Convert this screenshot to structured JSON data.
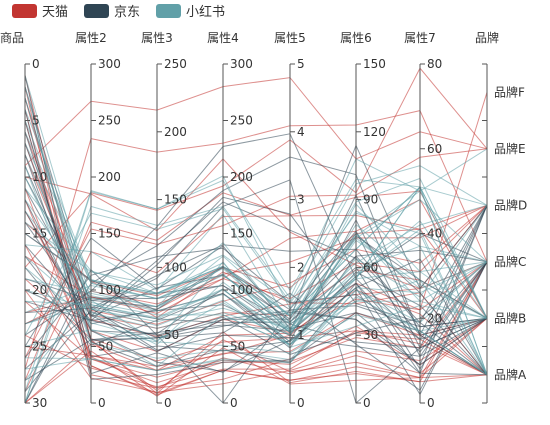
{
  "chart_data": {
    "type": "parallel",
    "legend": [
      {
        "name": "天猫",
        "color": "#c23531"
      },
      {
        "name": "京东",
        "color": "#2f4554"
      },
      {
        "name": "小红书",
        "color": "#61a0a8"
      }
    ],
    "axes": [
      {
        "name": "商品",
        "type": "value",
        "min": 0,
        "max": 30,
        "inverse": true,
        "ticks": [
          0,
          5,
          10,
          15,
          20,
          25,
          30
        ]
      },
      {
        "name": "属性2",
        "type": "value",
        "min": 0,
        "max": 300,
        "inverse": false,
        "ticks": [
          0,
          50,
          100,
          150,
          200,
          250,
          300
        ]
      },
      {
        "name": "属性3",
        "type": "value",
        "min": 0,
        "max": 250,
        "inverse": false,
        "ticks": [
          0,
          50,
          100,
          150,
          200,
          250
        ]
      },
      {
        "name": "属性4",
        "type": "value",
        "min": 0,
        "max": 300,
        "inverse": false,
        "ticks": [
          0,
          50,
          100,
          150,
          200,
          250,
          300
        ]
      },
      {
        "name": "属性5",
        "type": "value",
        "min": 0,
        "max": 5,
        "inverse": false,
        "ticks": [
          0,
          1,
          2,
          3,
          4,
          5
        ]
      },
      {
        "name": "属性6",
        "type": "value",
        "min": 0,
        "max": 150,
        "inverse": false,
        "ticks": [
          0,
          30,
          60,
          90,
          120,
          150
        ]
      },
      {
        "name": "属性7",
        "type": "value",
        "min": 0,
        "max": 80,
        "inverse": false,
        "ticks": [
          0,
          20,
          40,
          60,
          80
        ]
      },
      {
        "name": "品牌",
        "type": "category",
        "categories": [
          "品牌A",
          "品牌B",
          "品牌C",
          "品牌D",
          "品牌E",
          "品牌F"
        ]
      }
    ],
    "series": [
      {
        "name": "天猫",
        "color": "#c23531",
        "rows": [
          [
            1,
            55,
            9,
            56,
            0.46,
            18,
            6,
            "品牌A"
          ],
          [
            2,
            25,
            11,
            21,
            0.65,
            34,
            9,
            "品牌B"
          ],
          [
            3,
            56,
            7,
            63,
            0.3,
            14,
            5,
            "品牌A"
          ],
          [
            4,
            33,
            7,
            29,
            0.33,
            16,
            6,
            "品牌C"
          ],
          [
            5,
            42,
            24,
            44,
            0.76,
            40,
            16,
            "品牌B"
          ],
          [
            6,
            82,
            58,
            90,
            1.77,
            68,
            33,
            "品牌D"
          ],
          [
            7,
            74,
            49,
            77,
            1.46,
            48,
            27,
            "品牌C"
          ],
          [
            8,
            78,
            55,
            80,
            1.29,
            59,
            29,
            "品牌B"
          ],
          [
            9,
            267,
            216,
            280,
            4.8,
            108,
            64,
            "品牌E"
          ],
          [
            10,
            185,
            127,
            216,
            2.52,
            61,
            27,
            "品牌D"
          ],
          [
            11,
            39,
            19,
            38,
            0.57,
            31,
            15,
            "品牌A"
          ],
          [
            12,
            41,
            11,
            40,
            0.43,
            21,
            7,
            "品牌B"
          ],
          [
            13,
            64,
            38,
            74,
            1.04,
            46,
            22,
            "品牌C"
          ],
          [
            14,
            108,
            79,
            120,
            1.7,
            75,
            41,
            "品牌B"
          ],
          [
            15,
            108,
            63,
            116,
            1.48,
            44,
            26,
            "品牌A"
          ],
          [
            16,
            33,
            6,
            29,
            0.34,
            13,
            5,
            "品牌C"
          ],
          [
            17,
            94,
            66,
            110,
            1.54,
            62,
            31,
            "品牌D"
          ],
          [
            18,
            186,
            142,
            192,
            3.88,
            93,
            79,
            "品牌E"
          ],
          [
            19,
            57,
            31,
            54,
            0.96,
            32,
            14,
            "品牌A"
          ],
          [
            20,
            22,
            8,
            17,
            0.48,
            23,
            10,
            "品牌B"
          ],
          [
            21,
            39,
            15,
            36,
            0.61,
            29,
            13,
            "品牌C"
          ],
          [
            22,
            94,
            69,
            114,
            2.08,
            73,
            39,
            "品牌D"
          ],
          [
            23,
            99,
            73,
            110,
            2.43,
            76,
            48,
            "品牌B"
          ],
          [
            24,
            31,
            12,
            30,
            0.5,
            32,
            16,
            "品牌A"
          ],
          [
            25,
            42,
            27,
            43,
            1,
            53,
            22,
            "品牌F"
          ],
          [
            26,
            154,
            117,
            157,
            3.05,
            92,
            58,
            "品牌E"
          ],
          [
            27,
            234,
            185,
            230,
            4.09,
            123,
            69,
            "品牌C"
          ],
          [
            28,
            160,
            120,
            186,
            2.77,
            91,
            50,
            "品牌B"
          ],
          [
            29,
            134,
            96,
            165,
            2.76,
            83,
            41,
            "品牌D"
          ],
          [
            30,
            52,
            24,
            60,
            1.03,
            50,
            21,
            "品牌A"
          ],
          [
            31,
            46,
            5,
            49,
            0.28,
            10,
            6,
            "品牌B"
          ]
        ]
      },
      {
        "name": "京东",
        "color": "#2f4554",
        "rows": [
          [
            1,
            26,
            37,
            27,
            1.163,
            27,
            13,
            "品牌B"
          ],
          [
            2,
            85,
            62,
            71,
            1.195,
            60,
            8,
            "品牌C"
          ],
          [
            3,
            78,
            38,
            74,
            1.363,
            37,
            7,
            "品牌A"
          ],
          [
            4,
            21,
            21,
            36,
            0.634,
            40,
            9,
            "品牌B"
          ],
          [
            5,
            41,
            42,
            46,
            0.915,
            81,
            13,
            "品牌D"
          ],
          [
            6,
            56,
            52,
            69,
            1.067,
            92,
            16,
            "品牌B"
          ],
          [
            7,
            64,
            30,
            28,
            0.924,
            51,
            2,
            "品牌C"
          ],
          [
            8,
            55,
            48,
            74,
            1.236,
            75,
            26,
            "品牌A"
          ],
          [
            9,
            76,
            85,
            113,
            1.237,
            114,
            27,
            "品牌D"
          ],
          [
            10,
            91,
            81,
            104,
            1.041,
            56,
            40,
            "品牌C"
          ],
          [
            11,
            84,
            39,
            60,
            0.964,
            25,
            11,
            "品牌B"
          ],
          [
            12,
            64,
            51,
            101,
            0.862,
            58,
            23,
            "品牌A"
          ],
          [
            13,
            70,
            69,
            120,
            1.198,
            65,
            36,
            "品牌C"
          ],
          [
            14,
            77,
            105,
            178,
            2.549,
            64,
            16,
            "品牌D"
          ],
          [
            15,
            109,
            68,
            87,
            0.996,
            74,
            29,
            "品牌B"
          ],
          [
            16,
            73,
            68,
            97,
            0.905,
            51,
            34,
            "品牌A"
          ],
          [
            17,
            54,
            27,
            47,
            0.592,
            53,
            12,
            "品牌C"
          ],
          [
            18,
            51,
            61,
            97,
            0.811,
            65,
            19,
            "品牌D"
          ],
          [
            19,
            91,
            71,
            121,
            1.374,
            43,
            18,
            "品牌B"
          ],
          [
            20,
            73,
            102,
            182,
            2.787,
            44,
            19,
            "品牌A"
          ],
          [
            21,
            73,
            50,
            76,
            0.717,
            31,
            20,
            "品牌C"
          ],
          [
            22,
            84,
            94,
            140,
            2.238,
            68,
            18,
            "品牌B"
          ],
          [
            23,
            93,
            77,
            104,
            1.165,
            53,
            7,
            "品牌D"
          ],
          [
            24,
            99,
            130,
            227,
            3.97,
            55,
            15,
            "品牌C"
          ],
          [
            25,
            146,
            84,
            139,
            1.094,
            40,
            17,
            "品牌A"
          ],
          [
            26,
            113,
            108,
            137,
            1.481,
            48,
            15,
            "品牌B"
          ],
          [
            27,
            81,
            48,
            62,
            1.619,
            26,
            3,
            "品牌C"
          ],
          [
            28,
            56,
            48,
            68,
            1.336,
            37,
            9,
            "品牌D"
          ],
          [
            29,
            82,
            92,
            174,
            3.29,
            0,
            13,
            "品牌B"
          ],
          [
            30,
            106,
            116,
            188,
            3.628,
            101,
            16,
            "品牌A"
          ],
          [
            31,
            118,
            50,
            0,
            1.383,
            76,
            11,
            "品牌C"
          ]
        ]
      },
      {
        "name": "小红书",
        "color": "#61a0a8",
        "rows": [
          [
            1,
            91,
            45,
            125,
            0.82,
            34,
            23,
            "品牌B"
          ],
          [
            2,
            65,
            27,
            78,
            0.86,
            45,
            29,
            "品牌A"
          ],
          [
            3,
            83,
            60,
            84,
            1.09,
            73,
            27,
            "品牌C"
          ],
          [
            4,
            109,
            81,
            121,
            1.28,
            68,
            51,
            "品牌B"
          ],
          [
            5,
            106,
            77,
            114,
            1.07,
            55,
            51,
            "品牌A"
          ],
          [
            6,
            109,
            81,
            121,
            1.28,
            68,
            51,
            "品牌D"
          ],
          [
            7,
            106,
            77,
            114,
            1.07,
            55,
            51,
            "品牌B"
          ],
          [
            8,
            89,
            65,
            78,
            0.86,
            51,
            26,
            "品牌C"
          ],
          [
            9,
            53,
            33,
            47,
            0.64,
            50,
            17,
            "品牌A"
          ],
          [
            10,
            80,
            55,
            80,
            1.01,
            75,
            24,
            "品牌B"
          ],
          [
            11,
            117,
            81,
            124,
            1.03,
            45,
            24,
            "品牌C"
          ],
          [
            12,
            99,
            71,
            142,
            1.1,
            62,
            42,
            "品牌D"
          ],
          [
            13,
            95,
            69,
            130,
            1.28,
            74,
            50,
            "品牌B"
          ],
          [
            14,
            116,
            87,
            131,
            1.47,
            84,
            40,
            "品牌A"
          ],
          [
            15,
            108,
            80,
            121,
            1.3,
            85,
            37,
            "品牌C"
          ],
          [
            16,
            134,
            83,
            167,
            1.16,
            57,
            43,
            "品牌B"
          ],
          [
            17,
            79,
            43,
            107,
            1.05,
            59,
            37,
            "品牌A"
          ],
          [
            18,
            71,
            46,
            89,
            0.86,
            64,
            25,
            "品牌D"
          ],
          [
            19,
            97,
            71,
            113,
            1.17,
            88,
            31,
            "品牌C"
          ],
          [
            20,
            84,
            57,
            91,
            0.85,
            55,
            31,
            "品牌B"
          ],
          [
            21,
            87,
            63,
            101,
            0.9,
            56,
            41,
            "品牌A"
          ],
          [
            22,
            104,
            77,
            119,
            1.09,
            73,
            48,
            "品牌C"
          ],
          [
            23,
            87,
            62,
            100,
            1,
            72,
            28,
            "品牌B"
          ],
          [
            24,
            168,
            128,
            172,
            1.49,
            97,
            56,
            "品牌D"
          ],
          [
            25,
            65,
            45,
            51,
            0.74,
            39,
            17,
            "品牌A"
          ],
          [
            26,
            39,
            24,
            38,
            0.61,
            47,
            17,
            "品牌B"
          ],
          [
            27,
            39,
            24,
            39,
            0.59,
            50,
            19,
            "品牌C"
          ],
          [
            28,
            93,
            68,
            96,
            1.05,
            79,
            29,
            "品牌B"
          ],
          [
            29,
            188,
            143,
            197,
            1.66,
            99,
            51,
            "品牌A"
          ],
          [
            30,
            174,
            131,
            174,
            1.55,
            108,
            50,
            "品牌E"
          ],
          [
            31,
            187,
            143,
            201,
            1.39,
            89,
            53,
            "品牌B"
          ]
        ]
      }
    ]
  }
}
